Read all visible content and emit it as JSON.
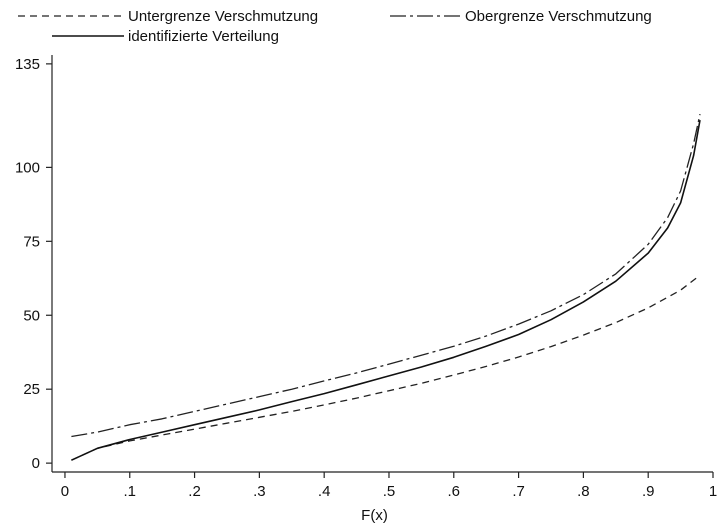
{
  "chart_data": {
    "type": "line",
    "xlabel": "F(x)",
    "ylabel": "",
    "xlim": [
      -0.02,
      1.0
    ],
    "ylim": [
      -3,
      138
    ],
    "x_ticks": [
      {
        "value": 0,
        "label": "0"
      },
      {
        "value": 0.1,
        "label": ".1"
      },
      {
        "value": 0.2,
        "label": ".2"
      },
      {
        "value": 0.3,
        "label": ".3"
      },
      {
        "value": 0.4,
        "label": ".4"
      },
      {
        "value": 0.5,
        "label": ".5"
      },
      {
        "value": 0.6,
        "label": ".6"
      },
      {
        "value": 0.7,
        "label": ".7"
      },
      {
        "value": 0.8,
        "label": ".8"
      },
      {
        "value": 0.9,
        "label": ".9"
      },
      {
        "value": 1.0,
        "label": "1"
      }
    ],
    "y_ticks": [
      {
        "value": 0,
        "label": "0"
      },
      {
        "value": 25,
        "label": "25"
      },
      {
        "value": 50,
        "label": "50"
      },
      {
        "value": 75,
        "label": "75"
      },
      {
        "value": 100,
        "label": "100"
      },
      {
        "value": 135,
        "label": "135"
      }
    ],
    "grid": false,
    "legend_position": "top",
    "series": [
      {
        "name": "Untergrenze Verschmutzung",
        "style": "dashed",
        "color": "#222222",
        "x": [
          0.01,
          0.05,
          0.1,
          0.15,
          0.2,
          0.25,
          0.3,
          0.35,
          0.4,
          0.45,
          0.5,
          0.55,
          0.6,
          0.65,
          0.7,
          0.75,
          0.8,
          0.85,
          0.9,
          0.95,
          0.98
        ],
        "y": [
          1,
          5,
          7.5,
          9.5,
          11.5,
          13.5,
          15.5,
          17.5,
          19.7,
          22,
          24.5,
          27,
          29.8,
          32.7,
          35.9,
          39.4,
          43.3,
          47.5,
          52.5,
          58.5,
          63.5
        ]
      },
      {
        "name": "Obergrenze Verschmutzung",
        "style": "dashdot",
        "color": "#222222",
        "x": [
          0.01,
          0.05,
          0.1,
          0.15,
          0.2,
          0.25,
          0.3,
          0.35,
          0.4,
          0.45,
          0.5,
          0.55,
          0.6,
          0.65,
          0.7,
          0.75,
          0.8,
          0.85,
          0.9,
          0.93,
          0.95,
          0.97,
          0.98
        ],
        "y": [
          9,
          10.5,
          13,
          15,
          17.5,
          20,
          22.5,
          25,
          27.8,
          30.5,
          33.5,
          36.5,
          39.5,
          43,
          47,
          51.5,
          57,
          64,
          74,
          83,
          92,
          108,
          118
        ]
      },
      {
        "name": "identifizierte Verteilung",
        "style": "solid",
        "color": "#111111",
        "x": [
          0.01,
          0.05,
          0.1,
          0.15,
          0.2,
          0.25,
          0.3,
          0.35,
          0.4,
          0.45,
          0.5,
          0.55,
          0.6,
          0.65,
          0.7,
          0.75,
          0.8,
          0.85,
          0.9,
          0.93,
          0.95,
          0.97,
          0.98
        ],
        "y": [
          1,
          5,
          8,
          10.5,
          13,
          15.5,
          18,
          20.8,
          23.5,
          26.5,
          29.5,
          32.5,
          35.8,
          39.5,
          43.5,
          48.5,
          54.5,
          61.5,
          71,
          79.5,
          88,
          104,
          116
        ]
      }
    ]
  }
}
